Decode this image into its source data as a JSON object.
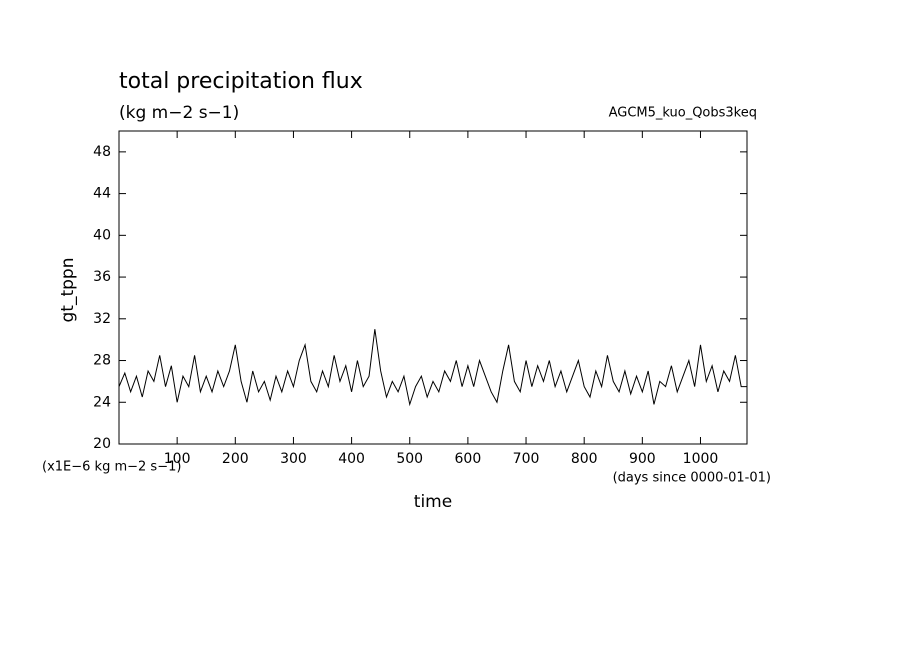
{
  "chart_data": {
    "type": "line",
    "title": "total precipitation flux",
    "subtitle": "(kg m−2 s−1)",
    "annotation": "AGCM5_kuo_Qobs3keq",
    "y_label": "gt_tppn",
    "y_units": "(x1E−6 kg m−2 s−1)",
    "x_label": "time",
    "x_units": "(days since 0000-01-01)",
    "xlim": [
      0,
      1080
    ],
    "ylim": [
      20,
      50
    ],
    "xticks": [
      100,
      200,
      300,
      400,
      500,
      600,
      700,
      800,
      900,
      1000
    ],
    "yticks": [
      20,
      24,
      28,
      32,
      36,
      40,
      44,
      48
    ],
    "x": [
      0,
      10,
      20,
      30,
      40,
      50,
      60,
      70,
      80,
      90,
      100,
      110,
      120,
      130,
      140,
      150,
      160,
      170,
      180,
      190,
      200,
      210,
      220,
      230,
      240,
      250,
      260,
      270,
      280,
      290,
      300,
      310,
      320,
      330,
      340,
      350,
      360,
      370,
      380,
      390,
      400,
      410,
      420,
      430,
      440,
      450,
      460,
      470,
      480,
      490,
      500,
      510,
      520,
      530,
      540,
      550,
      560,
      570,
      580,
      590,
      600,
      610,
      620,
      630,
      640,
      650,
      660,
      670,
      680,
      690,
      700,
      710,
      720,
      730,
      740,
      750,
      760,
      770,
      780,
      790,
      800,
      810,
      820,
      830,
      840,
      850,
      860,
      870,
      880,
      890,
      900,
      910,
      920,
      930,
      940,
      950,
      960,
      970,
      980,
      990,
      1000,
      1010,
      1020,
      1030,
      1040,
      1050,
      1060,
      1070,
      1080
    ],
    "series": [
      {
        "color": "#000000",
        "values": [
          25.5,
          26.8,
          25,
          26.5,
          24.5,
          27,
          26,
          28.5,
          25.5,
          27.5,
          24,
          26.5,
          25.5,
          28.5,
          25,
          26.5,
          25,
          27,
          25.5,
          27,
          29.5,
          26,
          24,
          27,
          25,
          26,
          24.2,
          26.5,
          25,
          27,
          25.5,
          28,
          29.5,
          26,
          25,
          27,
          25.5,
          28.5,
          26,
          27.5,
          25,
          28,
          25.5,
          26.5,
          31,
          27,
          24.5,
          26,
          25,
          26.5,
          23.8,
          25.5,
          26.5,
          24.5,
          26,
          25,
          27,
          26,
          28,
          25.5,
          27.5,
          25.5,
          28,
          26.5,
          25,
          24,
          27,
          29.5,
          26,
          25,
          28,
          25.5,
          27.5,
          26,
          28,
          25.5,
          27,
          25,
          26.5,
          28,
          25.5,
          24.5,
          27,
          25.5,
          28.5,
          26,
          25,
          27,
          24.8,
          26.5,
          25,
          27,
          23.8,
          26,
          25.5,
          27.5,
          25,
          26.5,
          28,
          25.5,
          29.5,
          26,
          27.5,
          25,
          27,
          26,
          28.5,
          25.5,
          25.5
        ]
      }
    ]
  }
}
